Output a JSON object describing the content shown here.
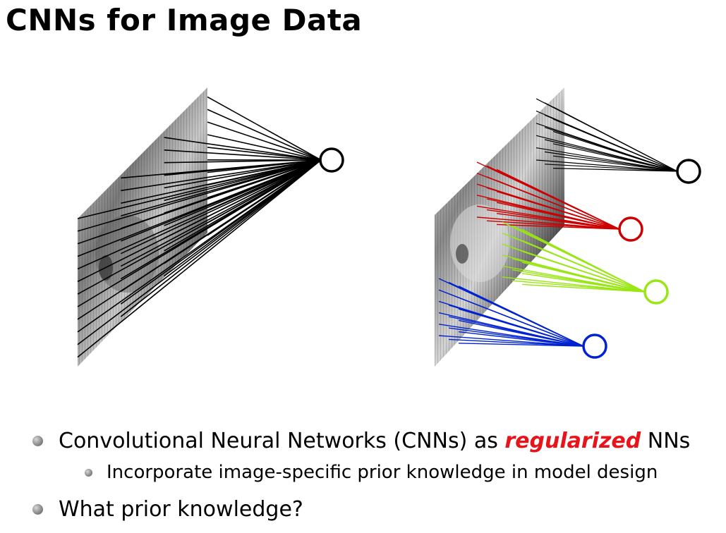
{
  "slide": {
    "title": "CNNs for Image Data"
  },
  "bullets": {
    "b1": {
      "pre": "Convolutional Neural Networks (CNNs) as ",
      "emph": "regularized",
      "post": " NNs"
    },
    "b1_sub": "Incorporate image-specific prior knowledge in model design",
    "b2": "What prior knowledge?"
  },
  "figure": {
    "left_diagram": "fully connected: every image pixel connected to one neuron",
    "right_diagram": "local receptive fields: image patches connected to separate neurons",
    "colors": {
      "black": "#000000",
      "red": "#cc0000",
      "green": "#99e614",
      "blue": "#0022d0",
      "emphasis": "#e8141b"
    }
  }
}
